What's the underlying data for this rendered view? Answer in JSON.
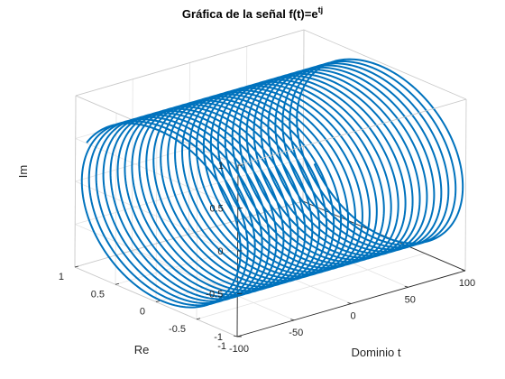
{
  "chart_data": {
    "type": "line",
    "projection": "3d",
    "title": {
      "main": "Gráfica de la señal f(t)=e",
      "superscript": "tj"
    },
    "xlabel": "Dominio t",
    "ylabel": "Re",
    "zlabel": "Im",
    "xlim": [
      -100,
      100
    ],
    "ylim": [
      -1,
      1
    ],
    "zlim": [
      -1,
      1
    ],
    "xticks": [
      -100,
      -50,
      0,
      50,
      100
    ],
    "xtick_labels": [
      "-100",
      "-50",
      "0",
      "50",
      "100"
    ],
    "yticks": [
      -1,
      -0.5,
      0,
      0.5,
      1
    ],
    "ytick_labels": [
      "-1",
      "-0.5",
      "0",
      "0.5",
      "1"
    ],
    "zticks": [
      -1,
      -0.5,
      0,
      0.5,
      1
    ],
    "ztick_labels": [
      "-1",
      "-0.5",
      "0",
      "0.5",
      "1"
    ],
    "grid": true,
    "box": true,
    "series": [
      {
        "t_range": [
          -100,
          100
        ],
        "x": "t",
        "y": "cos(t)",
        "z": "sin(t)",
        "color": "#0072bd"
      }
    ]
  }
}
